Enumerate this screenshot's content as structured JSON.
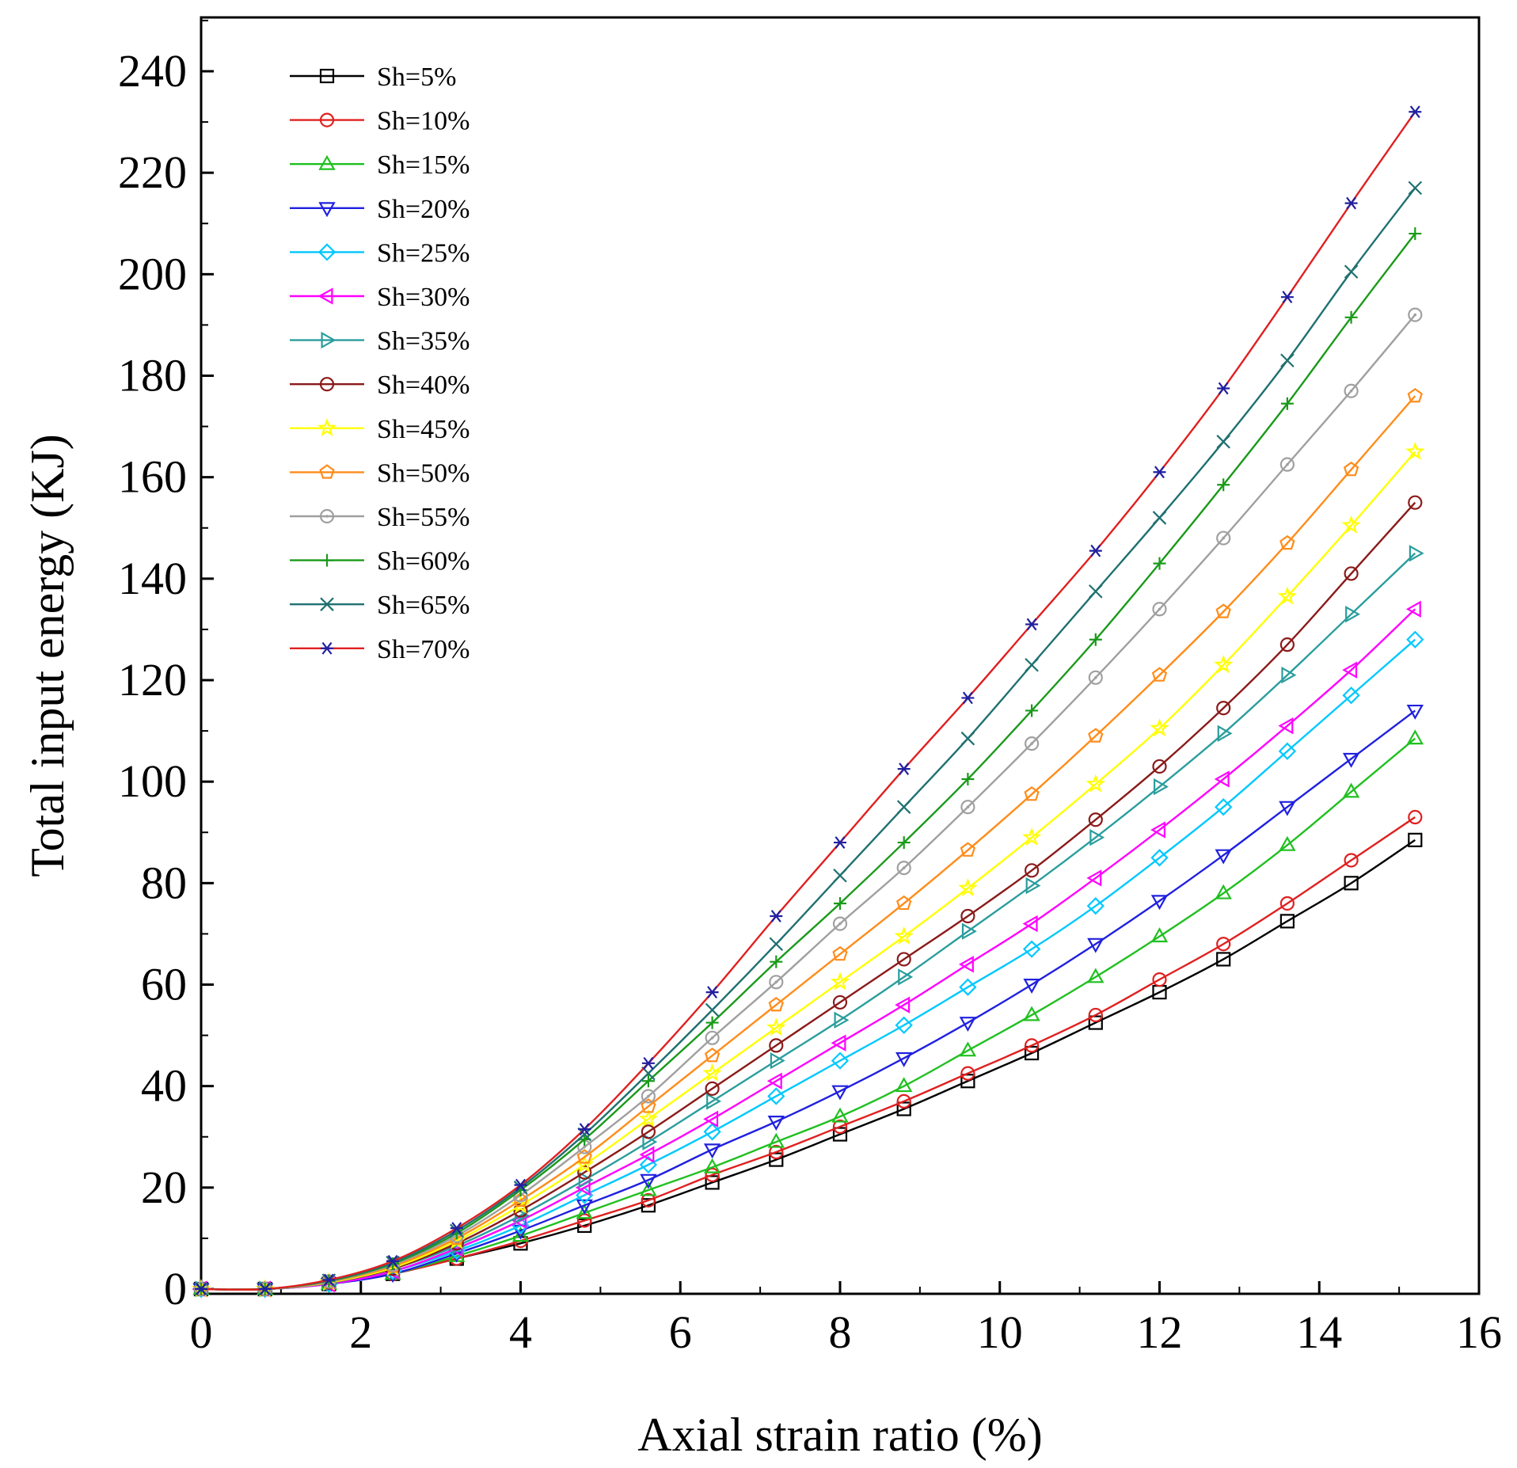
{
  "chart_data": {
    "type": "line",
    "title": "",
    "xlabel": "Axial strain ratio (%)",
    "ylabel": "Total input energy (KJ)",
    "xlim": [
      0,
      16
    ],
    "ylim": [
      0,
      250
    ],
    "xticks": [
      0,
      2,
      4,
      6,
      8,
      10,
      12,
      14,
      16
    ],
    "xtick_labels": [
      "0",
      "2",
      "4",
      "6",
      "8",
      "10",
      "12",
      "14",
      "16"
    ],
    "yticks": [
      0,
      20,
      40,
      60,
      80,
      100,
      120,
      140,
      160,
      180,
      200,
      220,
      240
    ],
    "ytick_labels": [
      "0",
      "20",
      "40",
      "60",
      "80",
      "100",
      "120",
      "140",
      "160",
      "180",
      "200",
      "220",
      "240"
    ],
    "grid": false,
    "legend_position": "top-left",
    "x": [
      0,
      0.8,
      1.6,
      2.4,
      3.2,
      4.0,
      4.8,
      5.6,
      6.4,
      7.2,
      8.0,
      8.8,
      9.6,
      10.4,
      11.2,
      12.0,
      12.8,
      13.6,
      14.4,
      15.2
    ],
    "series": [
      {
        "name": "Sh=5%",
        "color": "#000000",
        "marker": "square",
        "values": [
          0,
          0,
          1.0,
          3.0,
          6.0,
          9.0,
          12.5,
          16.5,
          21.0,
          25.5,
          30.5,
          35.5,
          41.0,
          46.5,
          52.5,
          58.5,
          65.0,
          72.5,
          80.0,
          88.5
        ]
      },
      {
        "name": "Sh=10%",
        "color": "#e02020",
        "marker": "circle",
        "values": [
          0,
          0,
          1.0,
          3.0,
          6.0,
          9.5,
          13.5,
          17.5,
          22.5,
          27.0,
          32.0,
          37.0,
          42.5,
          48.0,
          54.0,
          61.0,
          68.0,
          76.0,
          84.5,
          93.0
        ]
      },
      {
        "name": "Sh=15%",
        "color": "#20c020",
        "marker": "triangle-up",
        "values": [
          0,
          0,
          1.0,
          3.0,
          6.5,
          10.5,
          15.0,
          19.5,
          24.0,
          29.0,
          34.0,
          40.0,
          47.0,
          54.0,
          61.5,
          69.5,
          78.0,
          87.5,
          98.0,
          108.5
        ]
      },
      {
        "name": "Sh=20%",
        "color": "#2020e0",
        "marker": "triangle-down",
        "values": [
          0,
          0,
          1.0,
          3.0,
          7.0,
          11.5,
          16.5,
          21.5,
          27.5,
          33.0,
          39.0,
          45.5,
          52.5,
          60.0,
          68.0,
          76.5,
          85.5,
          95.0,
          104.5,
          114.0
        ]
      },
      {
        "name": "Sh=25%",
        "color": "#00c8ff",
        "marker": "diamond",
        "values": [
          0,
          0,
          1.0,
          3.5,
          7.5,
          12.5,
          18.5,
          24.5,
          31.0,
          38.0,
          45.0,
          52.0,
          59.5,
          67.0,
          75.5,
          85.0,
          95.0,
          106.0,
          117.0,
          128.0
        ]
      },
      {
        "name": "Sh=30%",
        "color": "#ff00ff",
        "marker": "triangle-left",
        "values": [
          0,
          0,
          1.0,
          3.5,
          8.0,
          13.5,
          20.0,
          26.5,
          33.5,
          41.0,
          48.5,
          56.0,
          64.0,
          72.0,
          81.0,
          90.5,
          100.5,
          111.0,
          122.0,
          134.0
        ]
      },
      {
        "name": "Sh=35%",
        "color": "#2a9d9d",
        "marker": "triangle-right",
        "values": [
          0,
          0,
          1.2,
          4.0,
          8.5,
          14.5,
          21.5,
          29.0,
          37.0,
          45.0,
          53.0,
          61.5,
          70.5,
          79.5,
          89.0,
          99.0,
          109.5,
          121.0,
          133.0,
          145.0
        ]
      },
      {
        "name": "Sh=40%",
        "color": "#8b1a1a",
        "marker": "circle",
        "values": [
          0,
          0,
          1.3,
          4.0,
          9.0,
          15.5,
          23.0,
          31.0,
          39.5,
          48.0,
          56.5,
          65.0,
          73.5,
          82.5,
          92.5,
          103.0,
          114.5,
          127.0,
          141.0,
          155.0
        ]
      },
      {
        "name": "Sh=45%",
        "color": "#ffff00",
        "marker": "star",
        "values": [
          0,
          0,
          1.3,
          4.2,
          9.5,
          16.5,
          24.5,
          33.5,
          42.5,
          51.5,
          60.5,
          69.5,
          79.0,
          89.0,
          99.5,
          110.5,
          123.0,
          136.5,
          150.5,
          165.0
        ]
      },
      {
        "name": "Sh=50%",
        "color": "#ff8c1a",
        "marker": "pentagon",
        "values": [
          0,
          0,
          1.4,
          4.5,
          10.0,
          17.5,
          26.0,
          36.0,
          46.0,
          56.0,
          66.0,
          76.0,
          86.5,
          97.5,
          109.0,
          121.0,
          133.5,
          147.0,
          161.5,
          176.0
        ]
      },
      {
        "name": "Sh=55%",
        "color": "#a0a0a0",
        "marker": "circle-dot",
        "values": [
          0,
          0,
          1.5,
          4.8,
          10.5,
          18.5,
          28.0,
          38.0,
          49.5,
          60.5,
          72.0,
          83.0,
          95.0,
          107.5,
          120.5,
          134.0,
          148.0,
          162.5,
          177.0,
          192.0
        ]
      },
      {
        "name": "Sh=60%",
        "color": "#1a9a1a",
        "marker": "plus",
        "values": [
          0,
          0,
          1.6,
          5.0,
          11.0,
          19.5,
          29.5,
          41.0,
          52.5,
          64.5,
          76.0,
          88.0,
          100.5,
          114.0,
          128.0,
          143.0,
          158.5,
          174.5,
          191.5,
          208.0
        ]
      },
      {
        "name": "Sh=65%",
        "color": "#207070",
        "marker": "cross",
        "values": [
          0,
          0,
          1.7,
          5.2,
          11.5,
          20.0,
          30.5,
          42.5,
          55.0,
          68.0,
          81.5,
          95.0,
          108.5,
          123.0,
          137.5,
          152.0,
          167.0,
          183.0,
          200.5,
          217.0
        ]
      },
      {
        "name": "Sh=70%",
        "color": "#e02020",
        "marker": "asterisk",
        "values": [
          0,
          0,
          1.8,
          5.5,
          12.0,
          20.5,
          31.5,
          44.5,
          58.5,
          73.5,
          88.0,
          102.5,
          116.5,
          131.0,
          145.5,
          161.0,
          177.5,
          195.5,
          214.0,
          232.0
        ]
      }
    ]
  }
}
